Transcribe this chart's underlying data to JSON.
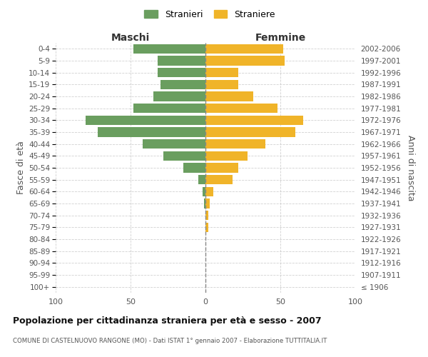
{
  "age_groups": [
    "100+",
    "95-99",
    "90-94",
    "85-89",
    "80-84",
    "75-79",
    "70-74",
    "65-69",
    "60-64",
    "55-59",
    "50-54",
    "45-49",
    "40-44",
    "35-39",
    "30-34",
    "25-29",
    "20-24",
    "15-19",
    "10-14",
    "5-9",
    "0-4"
  ],
  "birth_years": [
    "≤ 1906",
    "1907-1911",
    "1912-1916",
    "1917-1921",
    "1922-1926",
    "1927-1931",
    "1932-1936",
    "1937-1941",
    "1942-1946",
    "1947-1951",
    "1952-1956",
    "1957-1961",
    "1962-1966",
    "1967-1971",
    "1972-1976",
    "1977-1981",
    "1982-1986",
    "1987-1991",
    "1992-1996",
    "1997-2001",
    "2002-2006"
  ],
  "maschi": [
    0,
    0,
    0,
    0,
    0,
    0,
    0,
    1,
    2,
    5,
    15,
    28,
    42,
    72,
    80,
    48,
    35,
    30,
    32,
    32,
    48
  ],
  "femmine": [
    0,
    0,
    0,
    0,
    0,
    2,
    2,
    3,
    5,
    18,
    22,
    28,
    40,
    60,
    65,
    48,
    32,
    22,
    22,
    53,
    52
  ],
  "maschi_color": "#6a9e5f",
  "femmine_color": "#f0b429",
  "grid_color": "#cccccc",
  "title": "Popolazione per cittadinanza straniera per età e sesso - 2007",
  "subtitle": "COMUNE DI CASTELNUOVO RANGONE (MO) - Dati ISTAT 1° gennaio 2007 - Elaborazione TUTTITALIA.IT",
  "ylabel_left": "Fasce di età",
  "ylabel_right": "Anni di nascita",
  "xlabel_maschi": "Maschi",
  "xlabel_femmine": "Femmine",
  "legend_maschi": "Stranieri",
  "legend_femmine": "Straniere",
  "xlim": 100,
  "bar_height": 0.8
}
